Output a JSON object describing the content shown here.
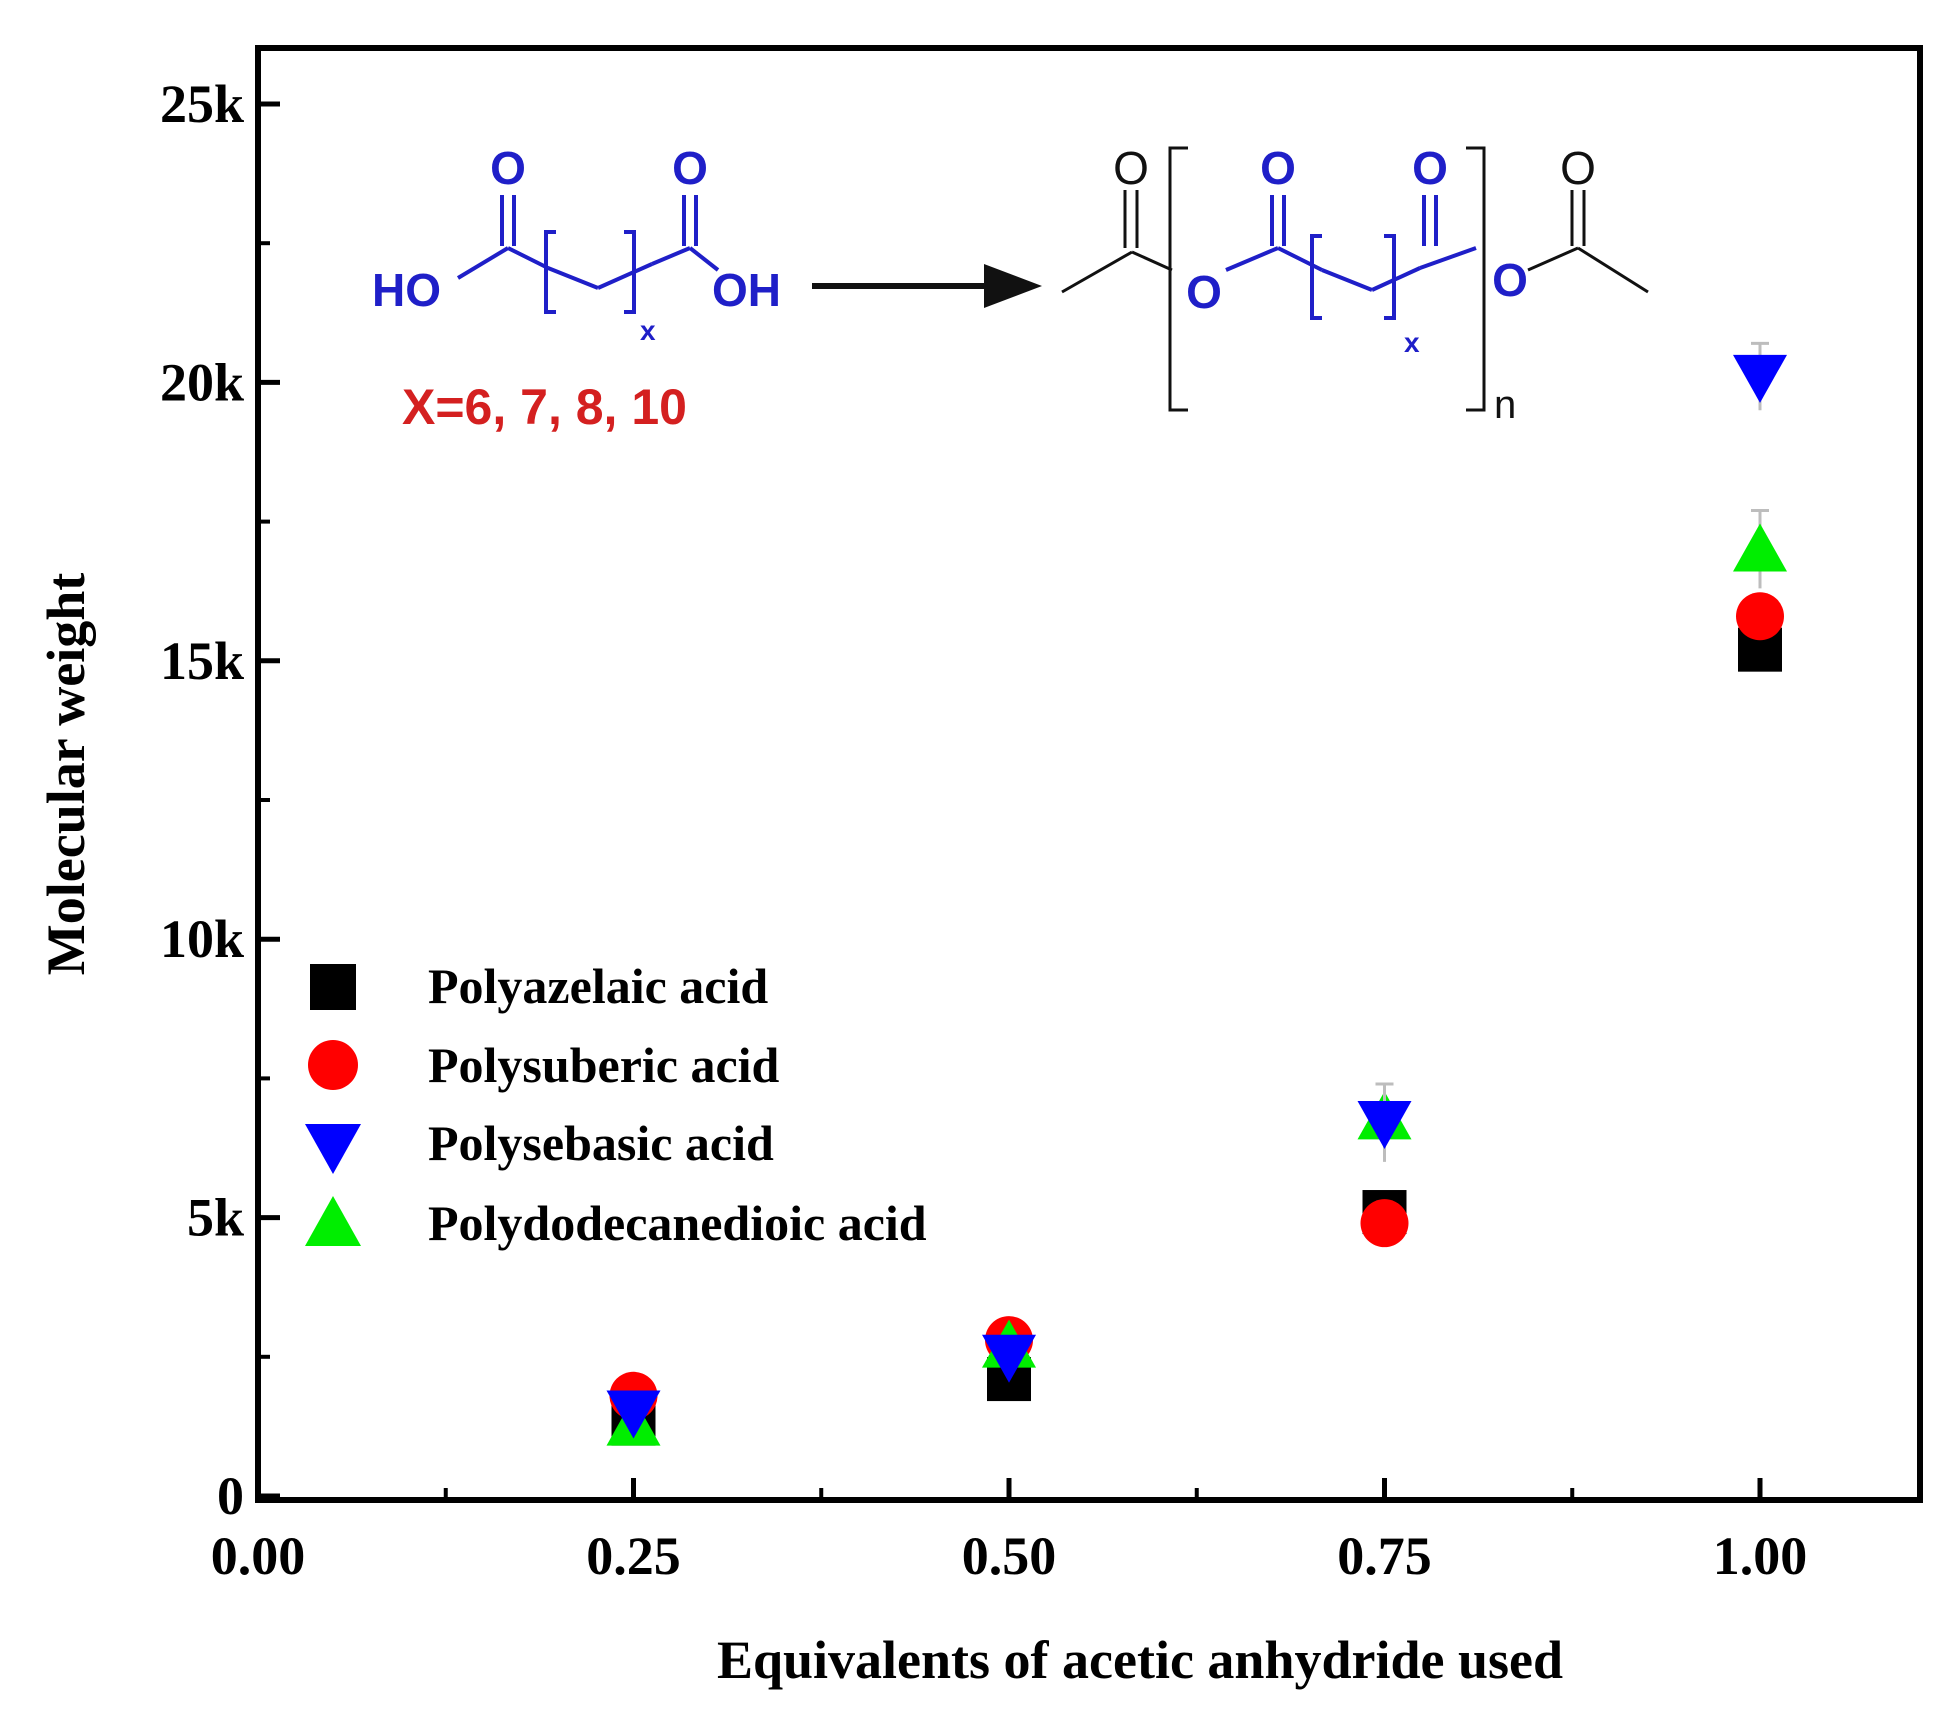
{
  "chart_data": {
    "type": "scatter",
    "title": "",
    "xlabel": "Equivalents of acetic anhydride used",
    "ylabel": "Molecular weight",
    "xlim": [
      0.0,
      1.08
    ],
    "ylim": [
      0,
      26000
    ],
    "x_ticks": [
      0.0,
      0.25,
      0.5,
      0.75,
      1.0
    ],
    "x_tick_labels": [
      "0.00",
      "0.25",
      "0.50",
      "0.75",
      "1.00"
    ],
    "y_ticks": [
      0,
      5000,
      10000,
      15000,
      20000,
      25000
    ],
    "y_tick_labels": [
      "0",
      "5k",
      "10k",
      "15k",
      "20k",
      "25k"
    ],
    "grid": false,
    "legend_placement": "center-left",
    "series": [
      {
        "name": "Polyazelaic acid",
        "marker": "square",
        "color": "#000000",
        "points": [
          [
            0.25,
            1300
          ],
          [
            0.5,
            2100
          ],
          [
            0.75,
            5100
          ],
          [
            1.0,
            15200
          ]
        ],
        "errors": [
          100,
          100,
          150,
          250
        ]
      },
      {
        "name": "Polysuberic acid",
        "marker": "circle",
        "color": "#ff0000",
        "points": [
          [
            0.25,
            1800
          ],
          [
            0.5,
            2800
          ],
          [
            0.75,
            4900
          ],
          [
            1.0,
            15800
          ]
        ],
        "errors": [
          100,
          100,
          150,
          200
        ]
      },
      {
        "name": "Polysebasic acid",
        "marker": "triangle-down",
        "color": "#0000ff",
        "points": [
          [
            0.25,
            1500
          ],
          [
            0.5,
            2500
          ],
          [
            0.75,
            6700
          ],
          [
            1.0,
            20100
          ]
        ],
        "errors": [
          100,
          150,
          700,
          600
        ]
      },
      {
        "name": "Polydodecanedioic acid",
        "marker": "triangle-up",
        "color": "#00ee00",
        "points": [
          [
            0.25,
            1300
          ],
          [
            0.5,
            2700
          ],
          [
            0.75,
            6800
          ],
          [
            1.0,
            17000
          ]
        ],
        "errors": [
          100,
          150,
          600,
          700
        ]
      }
    ],
    "annotations": {
      "reactant_left": "HO",
      "reactant_right": "OH",
      "oxygen": "O",
      "subscript": "x",
      "repeat": "n",
      "condition": "X=6, 7, 8, 10"
    }
  },
  "colors": {
    "chem_blue": "#1f1fc8",
    "chem_red": "#d42020",
    "axis": "#000000"
  }
}
